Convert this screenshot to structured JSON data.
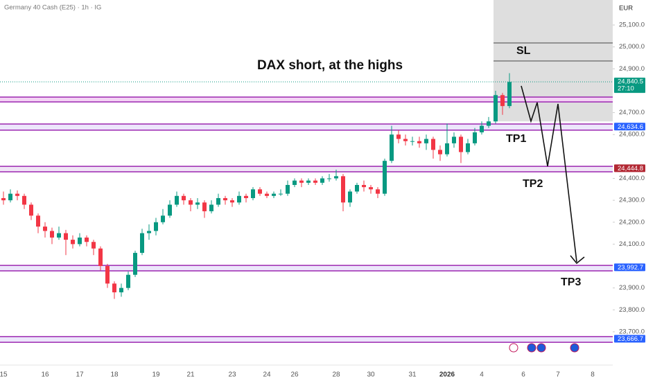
{
  "chart_data": {
    "type": "candlestick",
    "symbol": "Germany 40 Cash (E25) · 1h · IG",
    "currency": "EUR",
    "title": "DAX short, at the highs",
    "annotations": {
      "sl": "SL",
      "tp1": "TP1",
      "tp2": "TP2",
      "tp3": "TP3"
    },
    "up_color": "#089981",
    "down_color": "#f23645",
    "ylim": [
      23586,
      25214
    ],
    "yticks": [
      {
        "value": 23700,
        "label": "23,700.0"
      },
      {
        "value": 23800,
        "label": "23,800.0"
      },
      {
        "value": 23900,
        "label": "23,900.0"
      },
      {
        "value": 24100,
        "label": "24,100.0"
      },
      {
        "value": 24200,
        "label": "24,200.0"
      },
      {
        "value": 24300,
        "label": "24,300.0"
      },
      {
        "value": 24400,
        "label": "24,400.0"
      },
      {
        "value": 24600,
        "label": "24,600.0"
      },
      {
        "value": 24700,
        "label": "24,700.0"
      },
      {
        "value": 24900,
        "label": "24,900.0"
      },
      {
        "value": 25000,
        "label": "25,000.0"
      },
      {
        "value": 25100,
        "label": "25,100.0"
      }
    ],
    "categories": [
      "15",
      null,
      null,
      null,
      null,
      null,
      "16",
      null,
      null,
      null,
      null,
      "17",
      null,
      null,
      null,
      null,
      "18",
      null,
      null,
      null,
      null,
      null,
      "19",
      null,
      null,
      null,
      null,
      "21",
      null,
      null,
      null,
      null,
      null,
      "23",
      null,
      null,
      null,
      null,
      "24",
      null,
      null,
      null,
      "26",
      null,
      null,
      null,
      null,
      null,
      "28",
      null,
      null,
      null,
      null,
      "30",
      null,
      null,
      null,
      null,
      null,
      "31",
      null,
      null,
      null,
      null,
      "2026",
      null,
      null,
      null,
      null,
      "4",
      null,
      null,
      null,
      null,
      null,
      "6",
      null,
      null,
      null,
      null,
      "7",
      null,
      null,
      null,
      null,
      "8"
    ],
    "open": [
      24310,
      24300,
      24330,
      24320,
      24280,
      24230,
      24180,
      24160,
      24130,
      24150,
      24120,
      24100,
      24130,
      24110,
      24080,
      24000,
      23920,
      23880,
      23900,
      23960,
      24060,
      24150,
      24160,
      24200,
      24230,
      24280,
      24320,
      24300,
      24280,
      24290,
      24250,
      24280,
      24310,
      24300,
      24290,
      24320,
      24310,
      24350,
      24330,
      24320,
      24330,
      24330,
      24370,
      24390,
      24380,
      24390,
      24380,
      24400,
      24400,
      24410,
      24290,
      24340,
      24370,
      24360,
      24350,
      24330,
      24480,
      24600,
      24580,
      24570,
      24570,
      24560,
      24580,
      24530,
      24510,
      24560,
      24590,
      24520,
      24560,
      24610,
      24640,
      24660,
      24780,
      24730,
      null,
      null,
      null,
      null,
      null,
      null,
      null,
      null,
      null,
      null,
      null,
      null
    ],
    "high": [
      24340,
      24350,
      24345,
      24330,
      24290,
      24240,
      24200,
      24175,
      24180,
      24165,
      24140,
      24150,
      24140,
      24120,
      24090,
      24010,
      23930,
      23920,
      23975,
      24070,
      24170,
      24190,
      24220,
      24260,
      24300,
      24340,
      24330,
      24310,
      24310,
      24300,
      24300,
      24330,
      24320,
      24310,
      24340,
      24330,
      24360,
      24360,
      24340,
      24340,
      24350,
      24390,
      24400,
      24400,
      24400,
      24400,
      24410,
      24420,
      24440,
      24420,
      24350,
      24380,
      24390,
      24370,
      24360,
      24490,
      24640,
      24620,
      24600,
      24590,
      24590,
      24600,
      24590,
      24550,
      24650,
      24610,
      24600,
      24580,
      24630,
      24660,
      24680,
      24800,
      24790,
      24880,
      null,
      null,
      null,
      null,
      null,
      null,
      null,
      null,
      null,
      null,
      null,
      null
    ],
    "low": [
      24280,
      24290,
      24300,
      24260,
      24210,
      24150,
      24130,
      24100,
      24120,
      24050,
      24080,
      24090,
      24090,
      24050,
      23980,
      23900,
      23850,
      23860,
      23890,
      23950,
      24050,
      24120,
      24140,
      24190,
      24220,
      24270,
      24280,
      24250,
      24260,
      24220,
      24240,
      24270,
      24280,
      24270,
      24280,
      24290,
      24300,
      24320,
      24310,
      24310,
      24320,
      24320,
      24360,
      24360,
      24370,
      24370,
      24370,
      24385,
      24390,
      24250,
      24270,
      24330,
      24340,
      24330,
      24310,
      24320,
      24470,
      24560,
      24550,
      24550,
      24540,
      24530,
      24490,
      24480,
      24500,
      24540,
      24470,
      24510,
      24550,
      24600,
      24630,
      24650,
      24690,
      24720,
      null,
      null,
      null,
      null,
      null,
      null,
      null,
      null,
      null,
      null,
      null,
      null
    ],
    "close": [
      24300,
      24330,
      24320,
      24280,
      24230,
      24180,
      24160,
      24130,
      24150,
      24120,
      24100,
      24130,
      24110,
      24080,
      24000,
      23920,
      23880,
      23900,
      23960,
      24060,
      24150,
      24160,
      24200,
      24230,
      24280,
      24320,
      24300,
      24280,
      24290,
      24250,
      24280,
      24310,
      24300,
      24290,
      24320,
      24310,
      24350,
      24330,
      24320,
      24330,
      24330,
      24370,
      24390,
      24380,
      24390,
      24380,
      24400,
      24400,
      24410,
      24290,
      24340,
      24370,
      24360,
      24350,
      24330,
      24480,
      24600,
      24580,
      24570,
      24570,
      24560,
      24580,
      24530,
      24510,
      24560,
      24590,
      24520,
      24560,
      24610,
      24640,
      24660,
      24780,
      24730,
      24840,
      null,
      null,
      null,
      null,
      null,
      null,
      null,
      null,
      null,
      null,
      null,
      null
    ],
    "zone_color": "#9c27b0",
    "zones": [
      {
        "top": 24771,
        "bottom": 24749,
        "fill": "#f3d3f4"
      },
      {
        "top": 24648,
        "bottom": 24620,
        "fill": "#ece6fb"
      },
      {
        "top": 24455,
        "bottom": 24430,
        "fill": "#f0e4f6"
      },
      {
        "top": 24003,
        "bottom": 23978,
        "fill": "#ece6fb"
      },
      {
        "top": 23678,
        "bottom": 23652,
        "fill": "#ece6fb"
      }
    ],
    "sl_box_bottom": 24660,
    "sl_lines": [
      25018,
      24936
    ],
    "price_labels": [
      {
        "value": 24840.5,
        "label": "24,840.5",
        "color": "#089981",
        "countdown": "27:10"
      },
      {
        "value": 24634.6,
        "label": "24,634.6",
        "color": "#2962ff"
      },
      {
        "value": 24444.8,
        "label": "24,444.8",
        "color": "#b22833"
      },
      {
        "value": 23992.7,
        "label": "23,992.7",
        "color": "#2962ff"
      },
      {
        "value": 23666.7,
        "label": "23,666.7",
        "color": "#2962ff"
      }
    ]
  }
}
